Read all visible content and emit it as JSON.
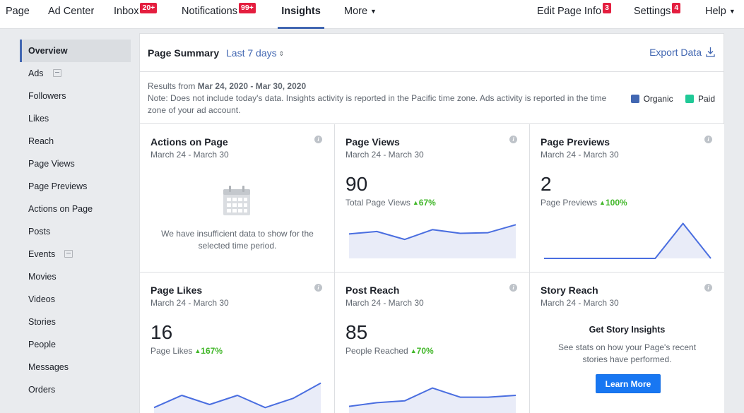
{
  "topnav": {
    "items": [
      {
        "label": "Page"
      },
      {
        "label": "Ad Center"
      },
      {
        "label": "Inbox",
        "badge": "20+"
      },
      {
        "label": "Notifications",
        "badge": "99+"
      },
      {
        "label": "Insights",
        "active": true
      },
      {
        "label": "More"
      },
      {
        "label": "Edit Page Info",
        "badge": "3"
      },
      {
        "label": "Settings",
        "badge": "4"
      },
      {
        "label": "Help"
      }
    ]
  },
  "sidebar": {
    "items": [
      {
        "label": "Overview",
        "active": true
      },
      {
        "label": "Ads",
        "external": true
      },
      {
        "label": "Followers"
      },
      {
        "label": "Likes"
      },
      {
        "label": "Reach"
      },
      {
        "label": "Page Views"
      },
      {
        "label": "Page Previews"
      },
      {
        "label": "Actions on Page"
      },
      {
        "label": "Posts"
      },
      {
        "label": "Events",
        "external": true
      },
      {
        "label": "Movies"
      },
      {
        "label": "Videos"
      },
      {
        "label": "Stories"
      },
      {
        "label": "People"
      },
      {
        "label": "Messages"
      },
      {
        "label": "Orders"
      }
    ]
  },
  "summary": {
    "title": "Page Summary",
    "range": "Last 7 days",
    "export_label": "Export Data",
    "results_prefix": "Results from ",
    "results_range": "Mar 24, 2020 - Mar 30, 2020",
    "note": "Note: Does not include today's data. Insights activity is reported in the Pacific time zone. Ads activity is reported in the time zone of your ad account.",
    "legend": [
      {
        "label": "Organic",
        "color": "#4267b2"
      },
      {
        "label": "Paid",
        "color": "#20c997"
      }
    ]
  },
  "cards": {
    "actions": {
      "title": "Actions on Page",
      "date": "March 24 - March 30",
      "empty_text": "We have insufficient data to show for the selected time period."
    },
    "page_views": {
      "title": "Page Views",
      "date": "March 24 - March 30",
      "value": "90",
      "metric": "Total Page Views",
      "change": "67%",
      "series": [
        40,
        44,
        31,
        47,
        41,
        42,
        55
      ]
    },
    "page_previews": {
      "title": "Page Previews",
      "date": "March 24 - March 30",
      "value": "2",
      "metric": "Page Previews",
      "change": "100%",
      "series": [
        0,
        0,
        0,
        0,
        0,
        2,
        0
      ]
    },
    "page_likes": {
      "title": "Page Likes",
      "date": "March 24 - March 30",
      "value": "16",
      "metric": "Page Likes",
      "change": "167%",
      "series": [
        1,
        3,
        1.5,
        3,
        1,
        2.5,
        5
      ]
    },
    "post_reach": {
      "title": "Post Reach",
      "date": "March 24 - March 30",
      "value": "85",
      "metric": "People Reached",
      "change": "70%",
      "series": [
        4,
        6,
        7,
        14,
        9,
        9,
        10
      ]
    },
    "story_reach": {
      "title": "Story Reach",
      "date": "March 24 - March 30",
      "heading": "Get Story Insights",
      "text": "See stats on how your Page's recent stories have performed.",
      "button": "Learn More"
    }
  },
  "colors": {
    "accent": "#4267b2",
    "spark_line": "#4a6ee0",
    "spark_fill": "#e9ecf8",
    "positive": "#42b72a",
    "badge": "#e41e3f"
  }
}
